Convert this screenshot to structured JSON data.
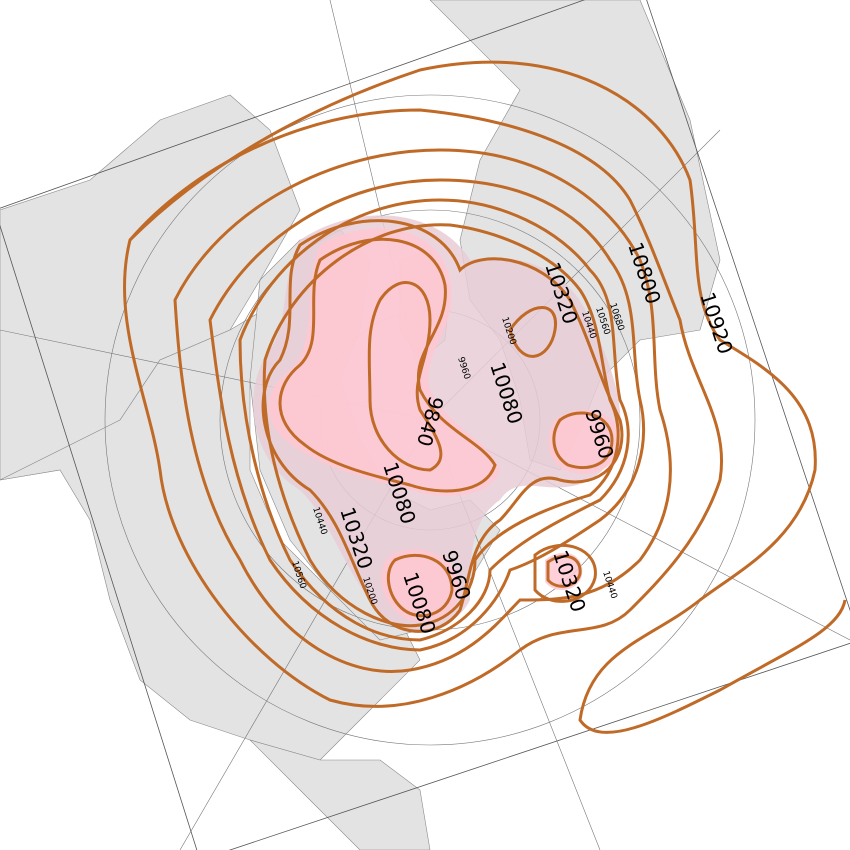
{
  "map": {
    "projection": "polar stereographic (north pole)",
    "variable": "geopotential height contours",
    "colors": {
      "land": "#e3e3e3",
      "contour": "#c06a28",
      "low_fill": "#ffc8d2",
      "mid_fill": "#e8cdd6"
    },
    "contour_labels": [
      {
        "text": "9840"
      },
      {
        "text": "10080"
      },
      {
        "text": "10080"
      },
      {
        "text": "10080"
      },
      {
        "text": "9960"
      },
      {
        "text": "9960"
      },
      {
        "text": "9960"
      },
      {
        "text": "10320"
      },
      {
        "text": "10320"
      },
      {
        "text": "10320"
      },
      {
        "text": "10800"
      },
      {
        "text": "10920"
      },
      {
        "text": "10200"
      },
      {
        "text": "10200"
      },
      {
        "text": "10440"
      },
      {
        "text": "10440"
      },
      {
        "text": "10440"
      },
      {
        "text": "10560"
      },
      {
        "text": "10560"
      },
      {
        "text": "10680"
      }
    ]
  }
}
